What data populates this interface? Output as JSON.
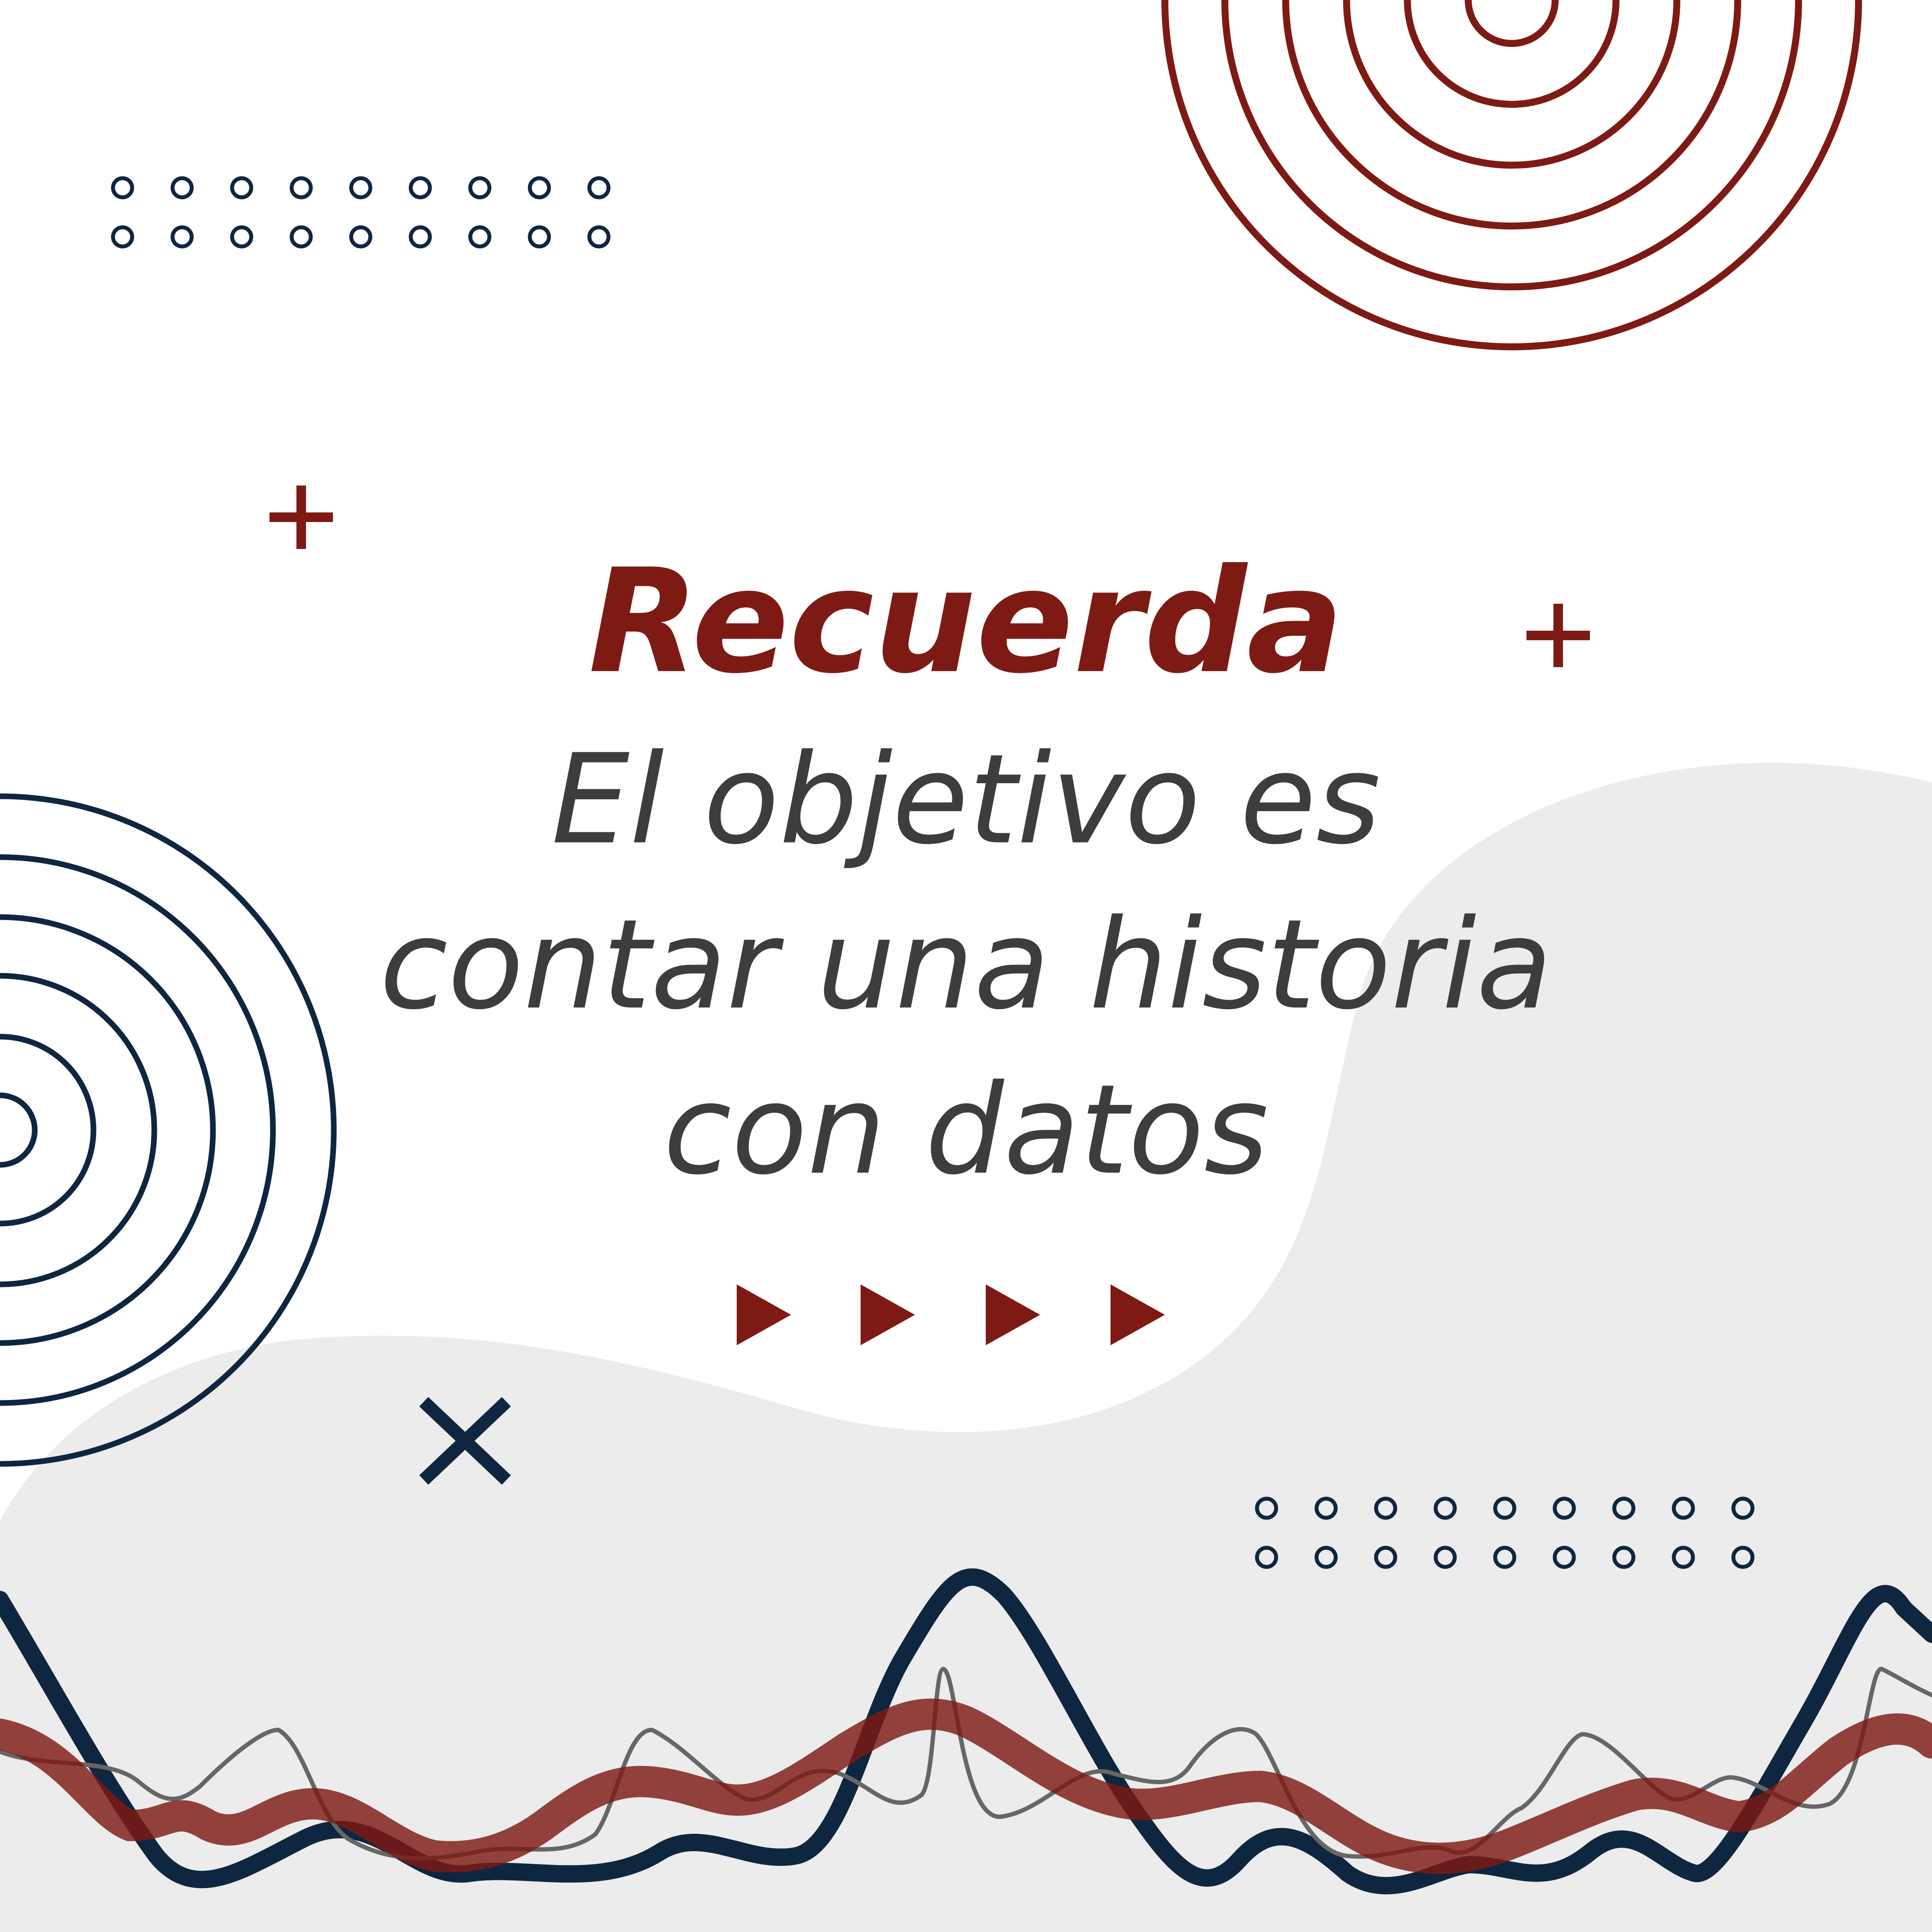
{
  "heading": "Recuerda",
  "message_lines": [
    "El objetivo es",
    "contar una historia",
    "con datos"
  ],
  "colors": {
    "background": "#ffffff",
    "blob": "#ececec",
    "accent_red": "#7e1a14",
    "navy": "#0e2640",
    "text": "#3d3d3d",
    "wave_gray": "#666666"
  },
  "decorations": {
    "top_right": "concentric-circles",
    "left_middle": "concentric-circles",
    "dot_grids": "hollow-dot-grid",
    "plus_signs": "plus-icon",
    "cross": "x-icon",
    "arrows": "play-triangle-icon",
    "waves": "wave-lines"
  }
}
